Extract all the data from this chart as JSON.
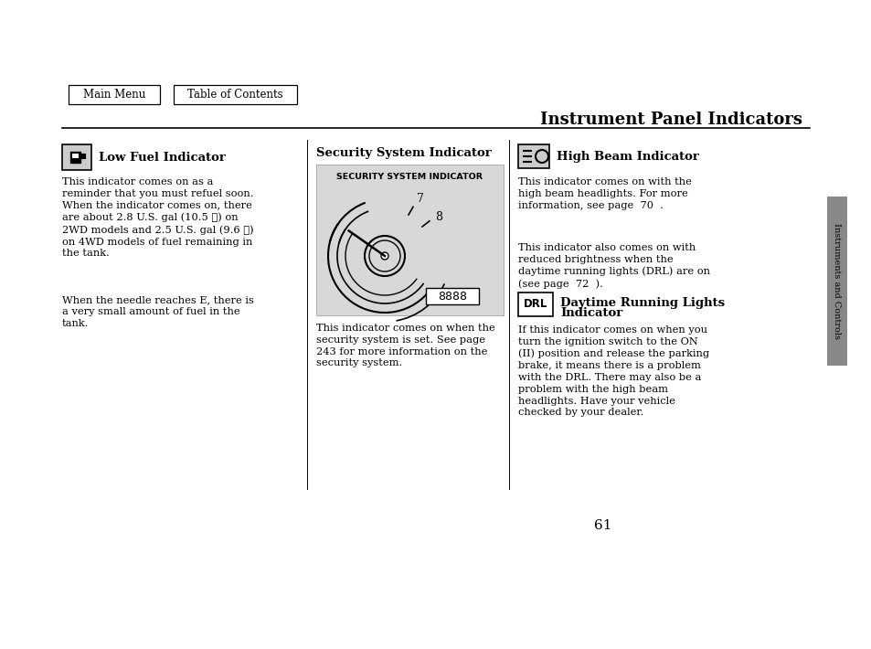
{
  "page_bg": "#ffffff",
  "title": "Instrument Panel Indicators",
  "page_number": "61",
  "sidebar_text": "Instruments and Controls",
  "nav_buttons": [
    "Main Menu",
    "Table of Contents"
  ],
  "section1_header": "Low Fuel Indicator",
  "section1_body_1": "This indicator comes on as a\nreminder that you must refuel soon.\nWhen the indicator comes on, there\nare about 2.8 U.S. gal (10.5 ℓ) on\n2WD models and 2.5 U.S. gal (9.6 ℓ)\non 4WD models of fuel remaining in\nthe tank.",
  "section1_body_2": "When the needle reaches E, there is\na very small amount of fuel in the\ntank.",
  "section2_header": "Security System Indicator",
  "section2_img_label": "SECURITY SYSTEM INDICATOR",
  "section2_body": "This indicator comes on when the\nsecurity system is set. See page\n243 for more information on the\nsecurity system.",
  "section3_header": "High Beam Indicator",
  "section3_body1": "This indicator comes on with the\nhigh beam headlights. For more\ninformation, see page  70  .",
  "section3_body2": "This indicator also comes on with\nreduced brightness when the\ndaytime running lights (DRL) are on\n(see page  72  ).",
  "section4_header_1": "Daytime Running Lights",
  "section4_header_2": "Indicator",
  "section4_body": "If this indicator comes on when you\nturn the ignition switch to the ON\n(II) position and release the parking\nbrake, it means there is a problem\nwith the DRL. There may also be a\nproblem with the high beam\nheadlights. Have your vehicle\nchecked by your dealer.",
  "sidebar_bg": "#888888",
  "icon_bg": "#cccccc"
}
